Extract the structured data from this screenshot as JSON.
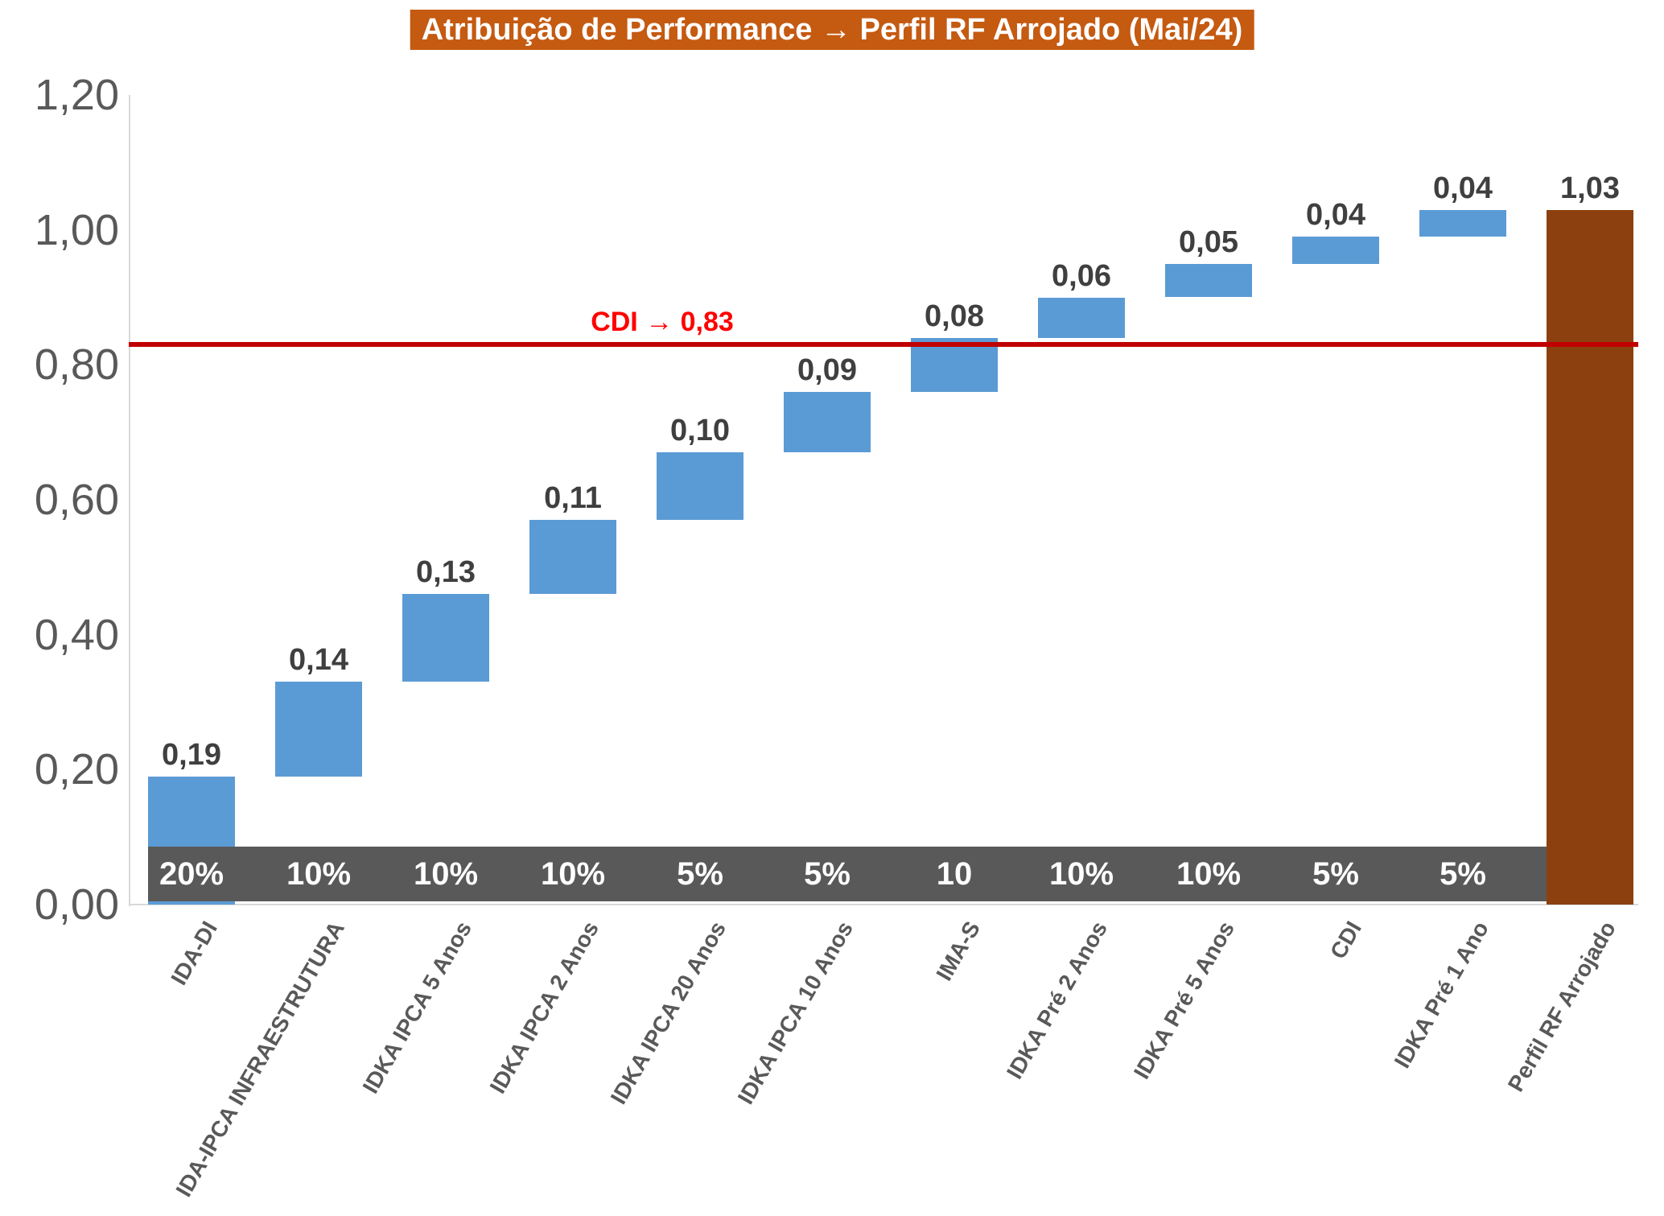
{
  "title": {
    "text": "Atribuição de Performance → Perfil RF Arrojado (Mai/24)"
  },
  "reference_line": {
    "label": "CDI → 0,83",
    "value": 0.83
  },
  "colors": {
    "title_bg": "#c55a11",
    "bar_delta": "#5b9bd5",
    "bar_total": "#8c400f",
    "weight_band_bg": "#595959",
    "weight_text": "#ffffff",
    "ref_line": "#c00000",
    "ref_label": "#ff0000",
    "axis_text": "#595959",
    "value_text": "#3f3f3f",
    "axis_line": "#d9d9d9"
  },
  "chart_data": {
    "type": "bar",
    "subtype": "waterfall",
    "title": "Atribuição de Performance → Perfil RF Arrojado (Mai/24)",
    "xlabel": "",
    "ylabel": "",
    "ylim": [
      0,
      1.2
    ],
    "grid": false,
    "legend": "none",
    "yticks": [
      {
        "label": "0,00",
        "value": 0.0
      },
      {
        "label": "0,20",
        "value": 0.2
      },
      {
        "label": "0,40",
        "value": 0.4
      },
      {
        "label": "0,60",
        "value": 0.6
      },
      {
        "label": "0,80",
        "value": 0.8
      },
      {
        "label": "1,00",
        "value": 1.0
      },
      {
        "label": "1,20",
        "value": 1.2
      }
    ],
    "categories": [
      "IDA-DI",
      "IDA-IPCA INFRAESTRUTURA",
      "IDKA IPCA 5 Anos",
      "IDKA IPCA 2 Anos",
      "IDKA IPCA 20 Anos",
      "IDKA IPCA 10 Anos",
      "IMA-S",
      "IDKA Pré 2 Anos",
      "IDKA Pré 5 Anos",
      "CDI",
      "IDKA Pré 1 Ano",
      "Perfil RF Arrojado"
    ],
    "values": [
      0.19,
      0.14,
      0.13,
      0.11,
      0.1,
      0.09,
      0.08,
      0.06,
      0.05,
      0.04,
      0.04,
      1.03
    ],
    "value_labels": [
      "0,19",
      "0,14",
      "0,13",
      "0,11",
      "0,10",
      "0,09",
      "0,08",
      "0,06",
      "0,05",
      "0,04",
      "0,04",
      "1,03"
    ],
    "bar_types": [
      "delta",
      "delta",
      "delta",
      "delta",
      "delta",
      "delta",
      "delta",
      "delta",
      "delta",
      "delta",
      "delta",
      "total"
    ],
    "weights": [
      "20%",
      "10%",
      "10%",
      "10%",
      "5%",
      "5%",
      "10",
      "10%",
      "10%",
      "5%",
      "5%"
    ],
    "reference_line": {
      "label": "CDI → 0,83",
      "value": 0.83
    }
  }
}
